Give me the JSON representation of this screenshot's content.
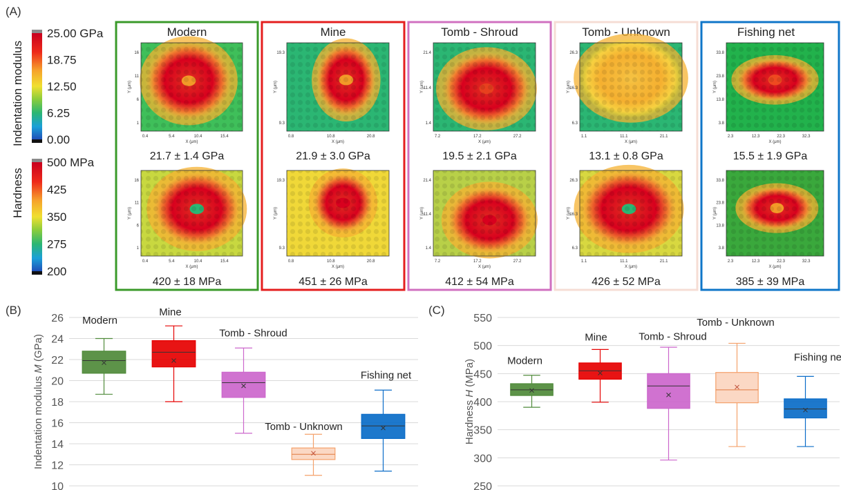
{
  "panel_labels": {
    "a": "(A)",
    "b": "(B)",
    "c": "(C)"
  },
  "colorbars": {
    "modulus": {
      "label": "Indentation modulus",
      "ticks": [
        "25.00 GPa",
        "18.75",
        "12.50",
        "6.25",
        "0.00"
      ],
      "values": [
        25,
        18.75,
        12.5,
        6.25,
        0
      ]
    },
    "hardness": {
      "label": "Hardness",
      "ticks": [
        "500 MPa",
        "425",
        "350",
        "275",
        "200"
      ],
      "values": [
        500,
        425,
        350,
        275,
        200
      ]
    },
    "colors": [
      "#111111",
      "#1f4fb8",
      "#1aa0d8",
      "#2bb673",
      "#8ccd3b",
      "#f0e030",
      "#f7a531",
      "#ee4a20",
      "#c8001e",
      "#8a8a8a"
    ]
  },
  "samples": [
    {
      "name": "Modern",
      "border": "#3a9a2a",
      "modulus_map": {
        "xticks": [
          "0.4",
          "5.4",
          "10.4",
          "15.4"
        ],
        "yticks": [
          "16",
          "11",
          "6",
          "1"
        ],
        "xlabel": "X (μm)",
        "ylabel": "Y (μm)"
      },
      "hardness_map": {
        "xticks": [
          "0.4",
          "5.4",
          "10.4",
          "15.4"
        ],
        "yticks": [
          "16",
          "11",
          "6",
          "1"
        ],
        "xlabel": "X (μm)",
        "ylabel": "Y (μm)"
      },
      "modulus_text": "21.7 ± 1.4 GPa",
      "hardness_text": "420 ± 18 MPa"
    },
    {
      "name": "Mine",
      "border": "#e41e1e",
      "modulus_map": {
        "xticks": [
          "0.8",
          "10.8",
          "20.8"
        ],
        "yticks": [
          "19.3",
          "9.3"
        ],
        "xlabel": "X (μm)",
        "ylabel": "Y (μm)"
      },
      "hardness_map": {
        "xticks": [
          "0.8",
          "10.8",
          "20.8"
        ],
        "yticks": [
          "19.3",
          "9.3"
        ],
        "xlabel": "X (μm)",
        "ylabel": "Y (μm)"
      },
      "modulus_text": "21.9 ± 3.0 GPa",
      "hardness_text": "451 ± 26 MPa"
    },
    {
      "name": "Tomb - Shroud",
      "border": "#d070c0",
      "modulus_map": {
        "xticks": [
          "7.2",
          "17.2",
          "27.2"
        ],
        "yticks": [
          "21.4",
          "11.4",
          "1.4"
        ],
        "xlabel": "X (μm)",
        "ylabel": "Y (μm)"
      },
      "hardness_map": {
        "xticks": [
          "7.2",
          "17.2",
          "27.2"
        ],
        "yticks": [
          "21.4",
          "11.4",
          "1.4"
        ],
        "xlabel": "X (μm)",
        "ylabel": "Y (μm)"
      },
      "modulus_text": "19.5 ± 2.1 GPa",
      "hardness_text": "412 ± 54 MPa"
    },
    {
      "name": "Tomb - Unknown",
      "border": "#f6ddd4",
      "modulus_map": {
        "xticks": [
          "1.1",
          "11.1",
          "21.1"
        ],
        "yticks": [
          "26.3",
          "16.3",
          "6.3"
        ],
        "xlabel": "X (μm)",
        "ylabel": "Y (μm)"
      },
      "hardness_map": {
        "xticks": [
          "1.1",
          "11.1",
          "21.1"
        ],
        "yticks": [
          "26.3",
          "16.3",
          "6.3"
        ],
        "xlabel": "X (μm)",
        "ylabel": "Y (μm)"
      },
      "modulus_text": "13.1 ± 0.8 GPa",
      "hardness_text": "426 ± 52 MPa"
    },
    {
      "name": "Fishing net",
      "border": "#0f76c8",
      "modulus_map": {
        "xticks": [
          "2.3",
          "12.3",
          "22.3",
          "32.3"
        ],
        "yticks": [
          "33.8",
          "23.8",
          "13.8",
          "3.8"
        ],
        "xlabel": "X (μm)",
        "ylabel": "Y (μm)"
      },
      "hardness_map": {
        "xticks": [
          "2.3",
          "12.3",
          "22.3",
          "32.3"
        ],
        "yticks": [
          "33.8",
          "23.8",
          "13.8",
          "3.8"
        ],
        "xlabel": "X (μm)",
        "ylabel": "Y (μm)"
      },
      "modulus_text": "15.5 ± 1.9 GPa",
      "hardness_text": "385 ± 39 MPa"
    }
  ],
  "chart_data": [
    {
      "type": "box",
      "panel": "(B)",
      "ylabel": "Indentation modulus M (GPa)",
      "ylim": [
        10,
        26
      ],
      "yticks": [
        10,
        12,
        14,
        16,
        18,
        20,
        22,
        24,
        26
      ],
      "grid": true,
      "categories": [
        "Modern",
        "Mine",
        "Tomb - Shroud",
        "Tomb - Unknown",
        "Fishing net"
      ],
      "boxes": [
        {
          "name": "Modern",
          "color": "#4f8a3a",
          "min": 18.7,
          "q1": 20.7,
          "median": 21.9,
          "q3": 22.8,
          "max": 24.0,
          "mean": 21.7
        },
        {
          "name": "Mine",
          "color": "#e60000",
          "min": 18.0,
          "q1": 21.3,
          "median": 22.7,
          "q3": 23.8,
          "max": 25.2,
          "mean": 21.9
        },
        {
          "name": "Tomb - Shroud",
          "color": "#cc66cc",
          "min": 15.0,
          "q1": 18.4,
          "median": 19.8,
          "q3": 20.8,
          "max": 23.1,
          "mean": 19.5
        },
        {
          "name": "Tomb - Unknown",
          "color": "#f4a06a",
          "min": 11.0,
          "q1": 12.5,
          "median": 13.0,
          "q3": 13.6,
          "max": 14.9,
          "mean": 13.1
        },
        {
          "name": "Fishing net",
          "color": "#0a6cc8",
          "min": 11.4,
          "q1": 14.5,
          "median": 15.7,
          "q3": 16.8,
          "max": 19.1,
          "mean": 15.5
        }
      ]
    },
    {
      "type": "box",
      "panel": "(C)",
      "ylabel": "Hardness H (MPa)",
      "ylim": [
        250,
        550
      ],
      "yticks": [
        250,
        300,
        350,
        400,
        450,
        500,
        550
      ],
      "grid": true,
      "categories": [
        "Modern",
        "Mine",
        "Tomb - Shroud",
        "Tomb - Unknown",
        "Fishing net"
      ],
      "boxes": [
        {
          "name": "Modern",
          "color": "#4f8a3a",
          "min": 390,
          "q1": 411,
          "median": 421,
          "q3": 432,
          "max": 447,
          "mean": 420
        },
        {
          "name": "Mine",
          "color": "#e60000",
          "min": 399,
          "q1": 440,
          "median": 455,
          "q3": 469,
          "max": 493,
          "mean": 451
        },
        {
          "name": "Tomb - Shroud",
          "color": "#cc66cc",
          "min": 296,
          "q1": 388,
          "median": 428,
          "q3": 450,
          "max": 497,
          "mean": 412
        },
        {
          "name": "Tomb - Unknown",
          "color": "#f4a06a",
          "min": 320,
          "q1": 398,
          "median": 421,
          "q3": 452,
          "max": 504,
          "mean": 426
        },
        {
          "name": "Fishing net",
          "color": "#0a6cc8",
          "min": 320,
          "q1": 371,
          "median": 387,
          "q3": 405,
          "max": 445,
          "mean": 385
        }
      ]
    }
  ]
}
